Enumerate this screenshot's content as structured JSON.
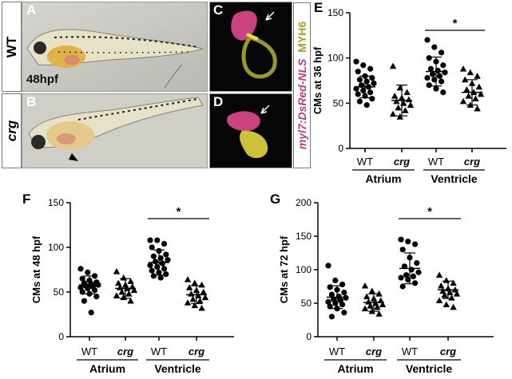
{
  "panels": {
    "A": "A",
    "B": "B",
    "C": "C",
    "D": "D",
    "E": "E",
    "F": "F",
    "G": "G"
  },
  "row_labels": {
    "wt": "WT",
    "crg": "crg"
  },
  "stage_label": "48hpf",
  "legend": {
    "part1": "myl7:DsRed-NLS",
    "part2": "MYH6"
  },
  "colors": {
    "magenta": "#b0408a",
    "olive": "#a8a02a",
    "marker": "#000000"
  },
  "chart_data": [
    {
      "panel": "E",
      "type": "scatter",
      "ylabel": "CMs at 36 hpf",
      "ylim": [
        0,
        150
      ],
      "yticks": [
        0,
        50,
        100,
        150
      ],
      "categories": [
        "WT",
        "crg",
        "WT",
        "crg"
      ],
      "groups": [
        "Atrium",
        "Ventricle"
      ],
      "significance": "*",
      "markers": [
        "circle",
        "triangle",
        "circle",
        "triangle"
      ],
      "series": [
        {
          "mean": 68,
          "sd": 12,
          "values": [
            96,
            92,
            88,
            85,
            80,
            78,
            76,
            74,
            72,
            70,
            68,
            66,
            64,
            62,
            60,
            58,
            55,
            52,
            48
          ]
        },
        {
          "mean": 53,
          "sd": 17,
          "values": [
            91,
            67,
            62,
            58,
            56,
            54,
            52,
            50,
            48,
            45,
            42,
            38,
            35
          ]
        },
        {
          "mean": 85,
          "sd": 16,
          "values": [
            120,
            112,
            106,
            100,
            96,
            92,
            88,
            86,
            84,
            82,
            80,
            78,
            76,
            74,
            70,
            66,
            62
          ]
        },
        {
          "mean": 62,
          "sd": 14,
          "values": [
            88,
            84,
            80,
            76,
            72,
            68,
            65,
            62,
            60,
            58,
            55,
            52,
            48,
            44
          ]
        }
      ]
    },
    {
      "panel": "F",
      "type": "scatter",
      "ylabel": "CMs at 48 hpf",
      "ylim": [
        0,
        150
      ],
      "yticks": [
        0,
        50,
        100,
        150
      ],
      "categories": [
        "WT",
        "crg",
        "WT",
        "crg"
      ],
      "groups": [
        "Atrium",
        "Ventricle"
      ],
      "significance": "*",
      "markers": [
        "circle",
        "triangle",
        "circle",
        "triangle"
      ],
      "series": [
        {
          "mean": 58,
          "sd": 10,
          "values": [
            76,
            72,
            68,
            65,
            63,
            61,
            60,
            59,
            58,
            57,
            56,
            55,
            54,
            52,
            50,
            48,
            45,
            40,
            27
          ]
        },
        {
          "mean": 54,
          "sd": 11,
          "values": [
            73,
            66,
            62,
            60,
            58,
            56,
            55,
            54,
            52,
            50,
            48,
            46,
            44,
            40
          ]
        },
        {
          "mean": 83,
          "sd": 14,
          "values": [
            108,
            108,
            104,
            100,
            96,
            92,
            90,
            88,
            86,
            84,
            82,
            80,
            78,
            76,
            74,
            72,
            70,
            68,
            66
          ]
        },
        {
          "mean": 47,
          "sd": 10,
          "values": [
            64,
            60,
            58,
            55,
            52,
            50,
            48,
            46,
            44,
            42,
            40,
            38,
            35,
            32
          ]
        }
      ]
    },
    {
      "panel": "G",
      "type": "scatter",
      "ylabel": "CMs at 72 hpf",
      "ylim": [
        0,
        200
      ],
      "yticks": [
        0,
        50,
        100,
        150,
        200
      ],
      "categories": [
        "WT",
        "crg",
        "WT",
        "crg"
      ],
      "groups": [
        "Atrium",
        "Ventricle"
      ],
      "significance": "*",
      "markers": [
        "circle",
        "triangle",
        "circle",
        "triangle"
      ],
      "series": [
        {
          "mean": 59,
          "sd": 17,
          "values": [
            106,
            84,
            78,
            74,
            70,
            66,
            63,
            60,
            58,
            56,
            54,
            52,
            50,
            48,
            45,
            42,
            36,
            30
          ]
        },
        {
          "mean": 51,
          "sd": 13,
          "values": [
            76,
            68,
            64,
            60,
            57,
            54,
            52,
            50,
            48,
            46,
            44,
            42,
            38,
            34
          ]
        },
        {
          "mean": 102,
          "sd": 23,
          "values": [
            145,
            142,
            138,
            130,
            118,
            110,
            105,
            100,
            96,
            92,
            90,
            88,
            85,
            80,
            75
          ]
        },
        {
          "mean": 70,
          "sd": 13,
          "values": [
            92,
            84,
            80,
            76,
            72,
            70,
            68,
            66,
            64,
            62,
            58,
            54,
            48,
            44
          ]
        }
      ]
    }
  ]
}
